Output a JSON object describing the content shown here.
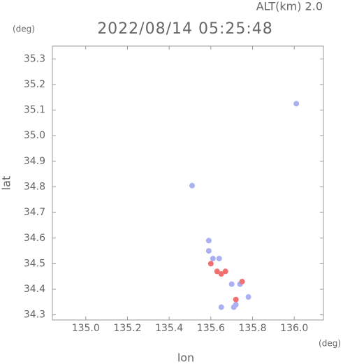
{
  "chart_data": {
    "type": "scatter",
    "title": "2022/08/14 05:25:48",
    "subtitle": "ALT(km) 2.0",
    "y_unit": "(deg)",
    "x_unit": "(deg)",
    "x_label": "lon",
    "y_label": "lat",
    "xlim": [
      134.84,
      136.14
    ],
    "ylim": [
      34.28,
      35.35
    ],
    "xticks": [
      {
        "value": 135.0,
        "label": "135.0"
      },
      135.2,
      135.4,
      135.6,
      135.8,
      {
        "value": 136.0,
        "label": "136.0"
      }
    ],
    "yticks": [
      34.3,
      34.4,
      34.5,
      34.6,
      34.7,
      34.8,
      34.9,
      {
        "value": 35.0,
        "label": "35.0"
      },
      35.1,
      35.2,
      35.3
    ],
    "series": [
      {
        "color": "#aab0f0",
        "x": [
          136.01,
          135.51,
          135.59,
          135.59,
          135.61,
          135.64,
          135.78,
          135.72,
          135.71,
          135.74,
          135.65,
          135.7
        ],
        "values": [
          35.125,
          34.805,
          34.59,
          34.55,
          34.52,
          34.52,
          34.37,
          34.34,
          34.33,
          34.42,
          34.33,
          34.42
        ]
      },
      {
        "color": "#f07070",
        "x": [
          135.67,
          135.65,
          135.72,
          135.6,
          135.75,
          135.63
        ],
        "values": [
          34.47,
          34.46,
          34.36,
          34.5,
          34.43,
          34.47
        ]
      }
    ]
  }
}
